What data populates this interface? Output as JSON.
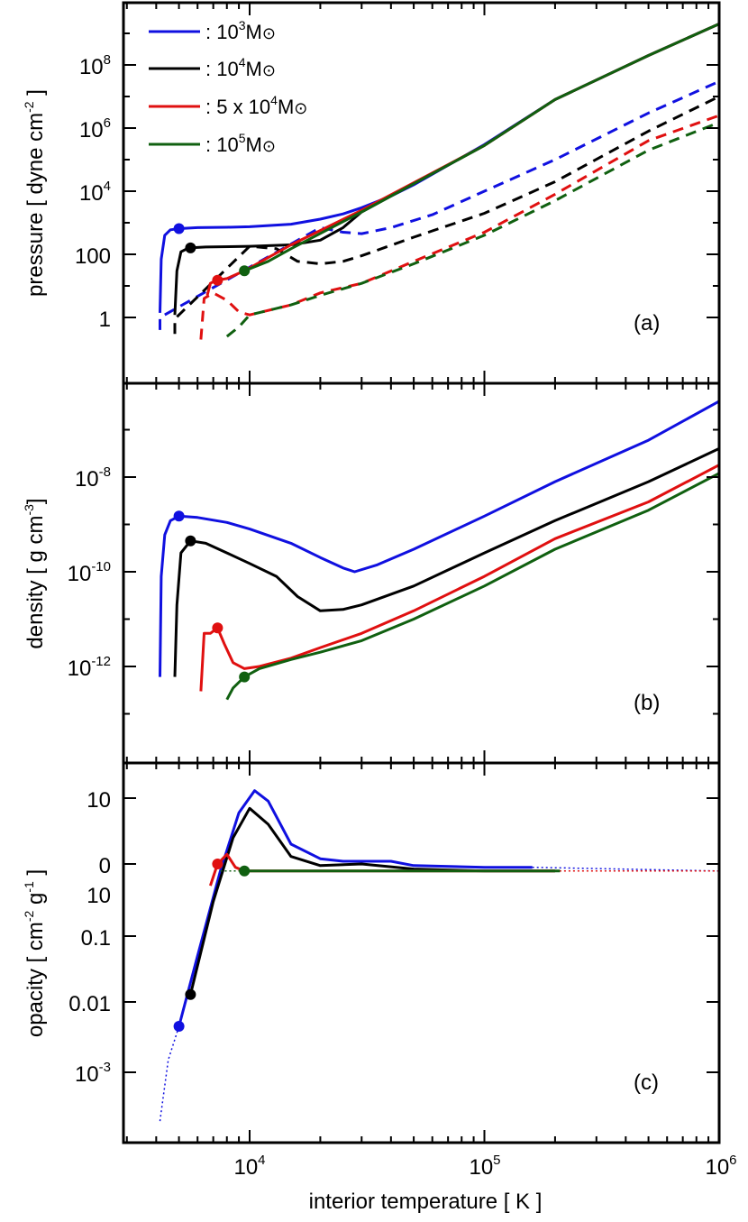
{
  "figure": {
    "xlabel": "interior temperature [ K ]",
    "x_ticks": [
      {
        "base": "10",
        "exp": "4"
      },
      {
        "base": "10",
        "exp": "5"
      },
      {
        "base": "10",
        "exp": "6"
      }
    ]
  },
  "legend": {
    "entries": [
      {
        "prefix": ": 10",
        "exp": "3",
        "unit": "M",
        "color": "#1010e0"
      },
      {
        "prefix": ": 10",
        "exp": "4",
        "unit": "M",
        "color": "#000000"
      },
      {
        "prefix": ": 5 x 10",
        "exp": "4",
        "unit": "M",
        "color": "#e01010"
      },
      {
        "prefix": ": 10",
        "exp": "5",
        "unit": "M",
        "color": "#106010"
      }
    ],
    "placement": "top-left"
  },
  "colors": {
    "m1e3": "#1010e0",
    "m1e4": "#000000",
    "m5e4": "#e01010",
    "m1e5": "#106010"
  },
  "panels": {
    "a": {
      "label": "(a)",
      "ylabel": "pressure [ dyne  cm",
      "ylabel_exp": "-2",
      "ylabel_tail": " ]",
      "y_ticks": [
        {
          "base": "1",
          "exp": ""
        },
        {
          "base": "100",
          "exp": ""
        },
        {
          "base": "10",
          "exp": "4"
        },
        {
          "base": "10",
          "exp": "6"
        },
        {
          "base": "10",
          "exp": "8"
        }
      ]
    },
    "b": {
      "label": "(b)",
      "ylabel": "density [ g  cm",
      "ylabel_exp": "-3",
      "ylabel_tail": "]",
      "y_ticks": [
        {
          "base": "10",
          "exp": "-12"
        },
        {
          "base": "10",
          "exp": "-10"
        },
        {
          "base": "10",
          "exp": "-8"
        }
      ]
    },
    "c": {
      "label": "(c)",
      "ylabel": "opacity [ cm",
      "ylabel_exp": "-2",
      "ylabel_mid": "  g",
      "ylabel_exp2": "-1",
      "ylabel_tail": " ]",
      "y_ticks": [
        {
          "base": "10",
          "exp": "-3"
        },
        {
          "base": "0.01",
          "exp": ""
        },
        {
          "base": "0.1",
          "exp": ""
        },
        {
          "base": "0",
          "exp": ""
        },
        {
          "base": "10",
          "exp": ""
        }
      ]
    }
  },
  "chart_data": [
    {
      "type": "line",
      "panel": "a",
      "xscale": "log",
      "yscale": "log",
      "xlim": [
        2800,
        1000000
      ],
      "ylim": [
        0.05,
        3000000000
      ],
      "y_tick_values": [
        1,
        100,
        10000,
        1000000,
        100000000
      ],
      "series": [
        {
          "key": "m1e3",
          "name": ": 10^3 M_sun",
          "style": "solid",
          "x": [
            4150,
            4200,
            4350,
            4600,
            5000,
            6000,
            8000,
            10000,
            15000,
            20000,
            25000,
            30000,
            40000,
            50000,
            100000,
            200000,
            500000,
            1000000
          ],
          "y": [
            1.4,
            70,
            400,
            600,
            650,
            700,
            720,
            750,
            900,
            1300,
            1900,
            3000,
            7000,
            16000,
            300000,
            8000000,
            200000000,
            2000000000
          ]
        },
        {
          "key": "m1e3",
          "name": "",
          "style": "dashed",
          "x": [
            4150,
            4150,
            20000,
            25000,
            30000,
            40000,
            60000,
            100000,
            200000,
            500000,
            1000000
          ],
          "y": [
            0.4,
            1.0,
            700,
            500,
            450,
            700,
            1800,
            10000,
            100000,
            3000000,
            30000000
          ]
        },
        {
          "key": "m1e4",
          "name": ": 10^4 M_sun",
          "style": "solid",
          "x": [
            4800,
            4900,
            5100,
            5500,
            6500,
            10000,
            15000,
            20000,
            25000,
            30000,
            40000,
            100000,
            200000,
            500000,
            1000000
          ],
          "y": [
            1.2,
            30,
            120,
            160,
            170,
            180,
            200,
            280,
            700,
            2200,
            7000,
            280000,
            8000000,
            200000000,
            2000000000
          ]
        },
        {
          "key": "m1e4",
          "name": "",
          "style": "dashed",
          "x": [
            4800,
            4800,
            10000,
            13000,
            16000,
            20000,
            25000,
            30000,
            50000,
            100000,
            200000,
            500000,
            1000000
          ],
          "y": [
            0.3,
            0.9,
            180,
            150,
            60,
            50,
            60,
            90,
            350,
            2000,
            20000,
            800000,
            10000000
          ]
        },
        {
          "key": "m5e4",
          "name": ": 5 x 10^4 M_sun",
          "style": "solid",
          "x": [
            6600,
            6800,
            7200,
            8000,
            9500,
            15000,
            30000,
            100000,
            200000,
            500000,
            1000000
          ],
          "y": [
            5,
            12,
            15,
            17,
            30,
            200,
            2500,
            280000,
            8000000,
            200000000,
            2000000000
          ]
        },
        {
          "key": "m5e4",
          "name": "",
          "style": "dashed",
          "x": [
            6200,
            6400,
            7000,
            8000,
            9000,
            10000,
            15000,
            20000,
            30000,
            50000,
            100000,
            200000,
            500000,
            1000000
          ],
          "y": [
            0.2,
            4,
            6,
            3.5,
            1.5,
            1.2,
            2.5,
            6,
            12,
            60,
            500,
            8000,
            400000,
            2500000
          ]
        },
        {
          "key": "m1e5",
          "name": ": 10^5 M_sun",
          "style": "solid",
          "x": [
            9500,
            12000,
            15000,
            30000,
            100000,
            200000,
            500000,
            1000000
          ],
          "y": [
            30,
            60,
            150,
            2200,
            280000,
            8000000,
            200000000,
            2000000000
          ]
        },
        {
          "key": "m1e5",
          "name": "",
          "style": "dashed",
          "x": [
            8000,
            9000,
            10000,
            15000,
            20000,
            30000,
            50000,
            100000,
            200000,
            500000,
            1000000
          ],
          "y": [
            0.25,
            0.5,
            1.2,
            2.5,
            5,
            12,
            50,
            400,
            5000,
            200000,
            1500000
          ]
        }
      ],
      "markers": [
        {
          "key": "m1e3",
          "x": 5000,
          "y": 650
        },
        {
          "key": "m1e4",
          "x": 5600,
          "y": 160
        },
        {
          "key": "m5e4",
          "x": 7300,
          "y": 15
        },
        {
          "key": "m1e5",
          "x": 9500,
          "y": 30
        }
      ]
    },
    {
      "type": "line",
      "panel": "b",
      "xscale": "log",
      "yscale": "log",
      "xlim": [
        2800,
        1000000
      ],
      "ylim": [
        5e-14,
        5e-07
      ],
      "y_tick_values": [
        1e-12,
        1e-10,
        1e-08
      ],
      "series": [
        {
          "key": "m1e3",
          "name": "",
          "style": "solid",
          "x": [
            4150,
            4200,
            4350,
            4600,
            5000,
            6000,
            8000,
            10000,
            15000,
            20000,
            25000,
            28000,
            35000,
            50000,
            100000,
            200000,
            500000,
            1000000
          ],
          "y": [
            6e-13,
            8e-11,
            6e-10,
            1.2e-09,
            1.5e-09,
            1.4e-09,
            1.1e-09,
            8e-10,
            4e-10,
            2e-10,
            1.2e-10,
            1e-10,
            1.4e-10,
            3e-10,
            1.5e-09,
            8e-09,
            6e-08,
            4e-07
          ]
        },
        {
          "key": "m1e4",
          "name": "",
          "style": "solid",
          "x": [
            4800,
            4900,
            5100,
            5600,
            6500,
            8000,
            10000,
            13000,
            16000,
            20000,
            25000,
            30000,
            50000,
            100000,
            200000,
            500000,
            1000000
          ],
          "y": [
            6e-13,
            2e-11,
            2.5e-10,
            4.5e-10,
            4e-10,
            2.5e-10,
            1.5e-10,
            8e-11,
            3e-11,
            1.5e-11,
            1.6e-11,
            2e-11,
            5e-11,
            2.5e-10,
            1.2e-09,
            8e-09,
            4e-08
          ]
        },
        {
          "key": "m5e4",
          "name": "",
          "style": "solid",
          "x": [
            6200,
            6400,
            6800,
            7300,
            7800,
            8500,
            9500,
            11000,
            15000,
            20000,
            30000,
            50000,
            100000,
            200000,
            500000,
            1000000
          ],
          "y": [
            3e-13,
            5e-12,
            5e-12,
            6.5e-12,
            3e-12,
            1.2e-12,
            9e-13,
            1e-12,
            1.5e-12,
            2.5e-12,
            5e-12,
            1.5e-11,
            8e-11,
            5e-10,
            3e-09,
            1.8e-08
          ]
        },
        {
          "key": "m1e5",
          "name": "",
          "style": "solid",
          "x": [
            8000,
            8500,
            9500,
            11000,
            15000,
            20000,
            30000,
            50000,
            100000,
            200000,
            500000,
            1000000
          ],
          "y": [
            2e-13,
            3.5e-13,
            6e-13,
            9e-13,
            1.4e-12,
            2e-12,
            3.5e-12,
            1e-11,
            5e-11,
            3e-10,
            2e-09,
            1.2e-08
          ]
        }
      ],
      "markers": [
        {
          "key": "m1e3",
          "x": 5000,
          "y": 1.5e-09
        },
        {
          "key": "m1e4",
          "x": 5600,
          "y": 4.5e-10
        },
        {
          "key": "m5e4",
          "x": 7300,
          "y": 6.5e-12
        },
        {
          "key": "m1e5",
          "x": 9500,
          "y": 6e-13
        }
      ]
    },
    {
      "type": "line",
      "panel": "c",
      "xscale": "linear",
      "yscale": "linear",
      "xlim": [
        2800,
        1000000
      ],
      "y_tick_positions_note": "ticks at 10^-3, 0.01, 0.1, 0, 10",
      "series": [
        {
          "key": "m1e3",
          "name": "",
          "style": "dotted",
          "x": [
            4150,
            4500,
            5000
          ],
          "y": [
            3e-05,
            0.0015,
            0.0045
          ]
        },
        {
          "key": "m1e3",
          "name": "",
          "style": "solid",
          "x": [
            5000,
            6000,
            7500,
            9000,
            10500,
            12000,
            15000,
            20000,
            25000,
            30000,
            40000,
            50000,
            100000,
            160000
          ],
          "y": [
            0.0045,
            0.05,
            0.8,
            6,
            13,
            9,
            2,
            1.2,
            1.1,
            1.1,
            1.1,
            0.95,
            0.9,
            0.9
          ]
        },
        {
          "key": "m1e3",
          "name": "",
          "style": "dotted",
          "x": [
            160000,
            1000000
          ],
          "y": [
            0.9,
            0.8
          ]
        },
        {
          "key": "m1e4",
          "name": "",
          "style": "solid",
          "x": [
            5600,
            7000,
            8500,
            10000,
            12000,
            15000,
            20000,
            30000,
            50000,
            100000,
            200000
          ],
          "y": [
            0.013,
            0.3,
            2.5,
            7,
            4,
            1.3,
            0.95,
            1.0,
            0.85,
            0.8,
            0.8
          ]
        },
        {
          "key": "m5e4",
          "name": "",
          "style": "solid",
          "x": [
            6800,
            7300,
            8000,
            8700,
            9500,
            15000,
            30000,
            100000,
            200000
          ],
          "y": [
            0.5,
            1.0,
            1.4,
            0.9,
            0.8,
            0.8,
            0.8,
            0.8,
            0.8
          ]
        },
        {
          "key": "m5e4",
          "name": "",
          "style": "dotted",
          "x": [
            200000,
            1000000
          ],
          "y": [
            0.8,
            0.8
          ]
        },
        {
          "key": "m1e5",
          "name": "",
          "style": "dotted",
          "x": [
            7500,
            9500
          ],
          "y": [
            0.8,
            0.8
          ]
        },
        {
          "key": "m1e5",
          "name": "",
          "style": "solid",
          "x": [
            9500,
            30000,
            100000,
            210000
          ],
          "y": [
            0.8,
            0.8,
            0.8,
            0.8
          ]
        }
      ],
      "markers": [
        {
          "key": "m1e3",
          "x": 5000,
          "y": 0.0045
        },
        {
          "key": "m1e4",
          "x": 5600,
          "y": 0.013
        },
        {
          "key": "m5e4",
          "x": 7300,
          "y": 1.0
        },
        {
          "key": "m1e5",
          "x": 9500,
          "y": 0.8
        }
      ]
    }
  ]
}
